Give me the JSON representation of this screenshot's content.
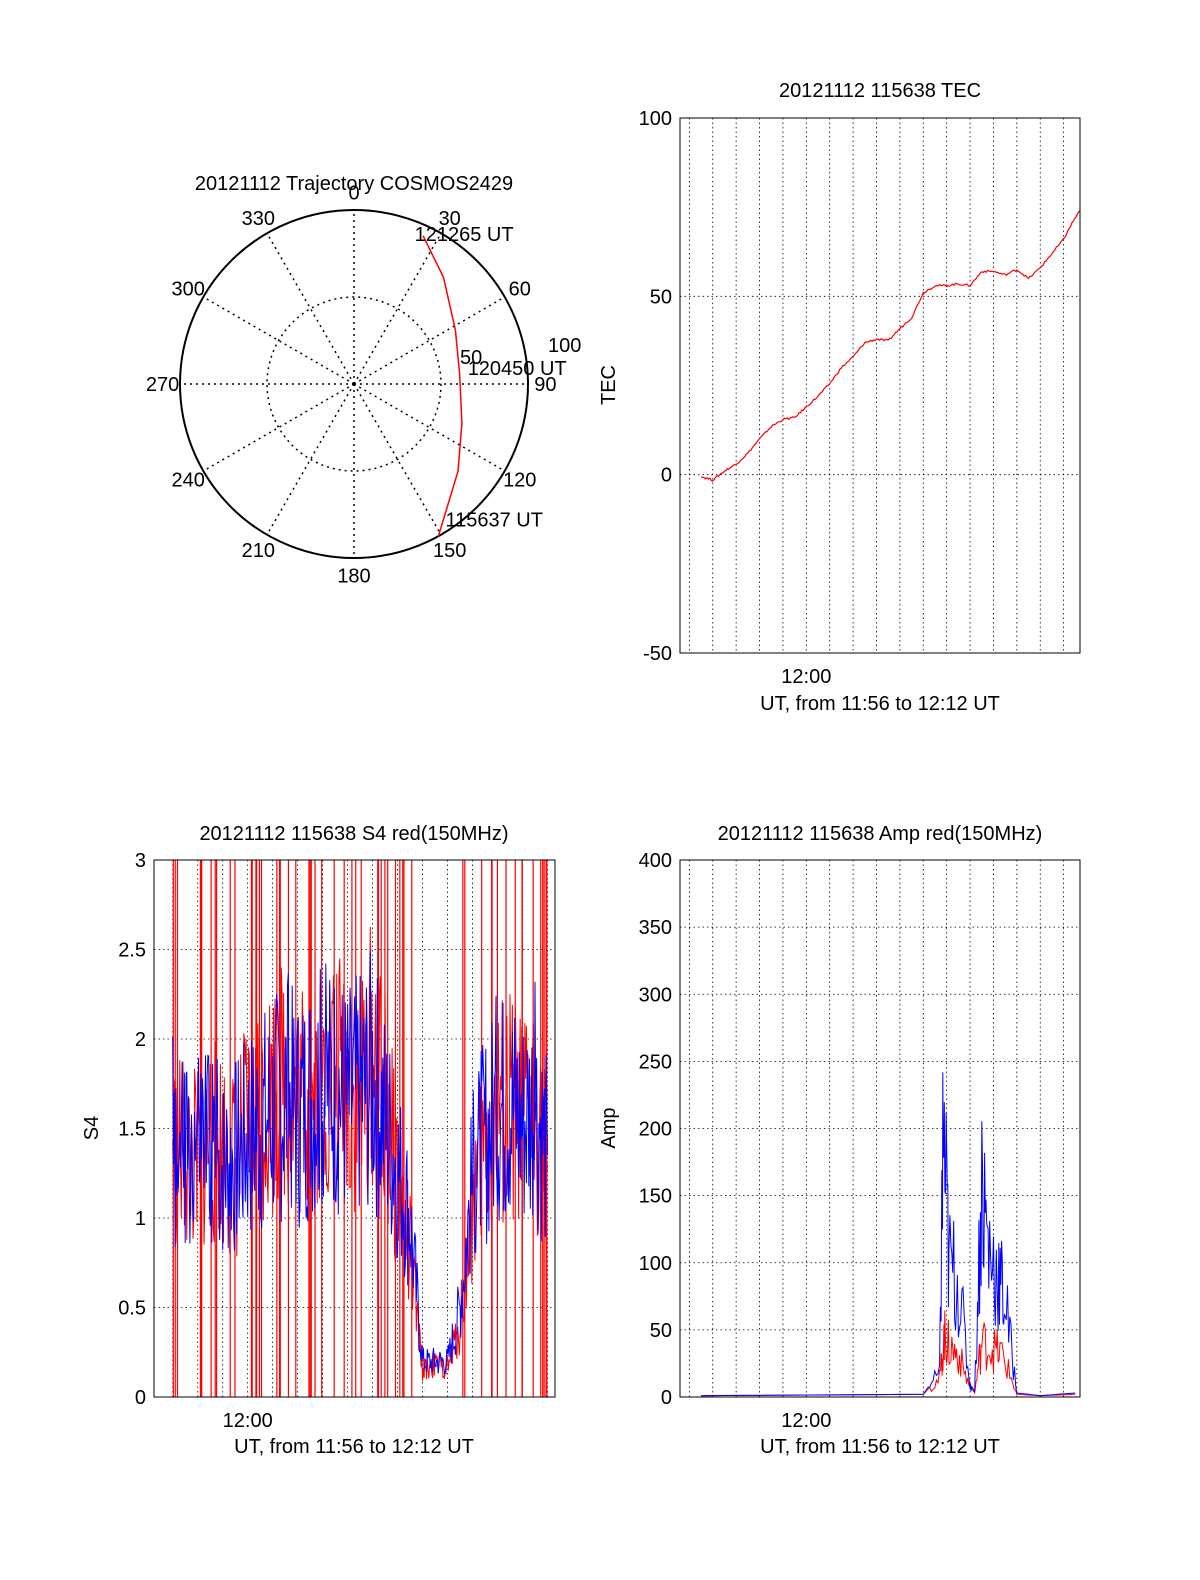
{
  "chart_data": [
    {
      "type": "polar-trajectory",
      "title": "20121112 Trajectory COSMOS2429",
      "angle_labels": [
        "0",
        "30",
        "60",
        "90",
        "120",
        "150",
        "180",
        "210",
        "240",
        "270",
        "300",
        "330"
      ],
      "radial_labels": [
        "50",
        "100"
      ],
      "radial_max": 100,
      "track": {
        "color": "#ff0000",
        "points": [
          {
            "az": 151,
            "r": 100
          },
          {
            "az": 130,
            "r": 78
          },
          {
            "az": 110,
            "r": 66
          },
          {
            "az": 85,
            "r": 61
          },
          {
            "az": 62,
            "r": 66
          },
          {
            "az": 40,
            "r": 80
          },
          {
            "az": 25,
            "r": 94
          }
        ]
      },
      "annotations": [
        {
          "text": "121265 UT",
          "az": 22,
          "r": 93
        },
        {
          "text": "120450 UT",
          "az": 82,
          "r": 66
        },
        {
          "text": "115637 UT",
          "az": 146,
          "r": 94
        }
      ]
    },
    {
      "type": "line",
      "title": "20121112 115638 TEC",
      "xlabel": "UT, from 11:56 to 12:12 UT",
      "ylabel": "TEC",
      "xlim": [
        -1.4,
        15.7
      ],
      "ylim": [
        -50,
        100
      ],
      "yticks": [
        -50,
        0,
        50,
        100
      ],
      "xticks": [
        {
          "x": 4,
          "label": "12:00"
        }
      ],
      "x_minor_step": 1,
      "series": [
        {
          "name": "TEC",
          "color": "#ff0000",
          "x": [
            -0.5,
            0,
            0.5,
            1,
            1.5,
            2,
            2.5,
            3,
            3.5,
            4,
            4.5,
            5,
            5.5,
            6,
            6.5,
            7,
            7.5,
            8,
            8.5,
            9,
            9.5,
            10,
            10.5,
            11,
            11.5,
            12,
            12.5,
            13,
            13.5,
            14,
            14.5,
            15,
            15.4,
            15.7
          ],
          "values": [
            -0.5,
            -1.5,
            1,
            3,
            6,
            10,
            13.5,
            15.5,
            16,
            19,
            22,
            25.5,
            30,
            33,
            37,
            38,
            37.5,
            41,
            44,
            51,
            53,
            53,
            53.5,
            53,
            57,
            57,
            56,
            57.5,
            55,
            58,
            62,
            66,
            71,
            74
          ]
        }
      ]
    },
    {
      "type": "line",
      "title": "20121112 115638 S4 red(150MHz)",
      "xlabel": "UT, from 11:56 to 12:12 UT",
      "ylabel": "S4",
      "xlim": [
        -0.75,
        15.3
      ],
      "ylim": [
        0,
        3
      ],
      "yticks": [
        0,
        0.5,
        1,
        1.5,
        2,
        2.5,
        3
      ],
      "xticks": [
        {
          "x": 3,
          "label": "12:00"
        }
      ],
      "x_minor_step": 1,
      "series": [
        {
          "name": "red",
          "color": "#ff0000",
          "x": [
            0,
            0.5,
            1,
            1.5,
            2,
            2.5,
            3,
            3.5,
            4,
            4.5,
            5,
            5.5,
            6,
            6.5,
            7,
            7.5,
            8,
            8.5,
            9,
            9.5,
            10,
            10.5,
            11,
            11.5,
            12,
            12.5,
            13,
            13.5,
            14,
            14.5,
            15
          ],
          "values": [
            1.4,
            1.35,
            1.3,
            1.45,
            1.4,
            1.3,
            1.5,
            1.6,
            1.7,
            1.75,
            1.65,
            1.7,
            1.75,
            1.8,
            1.7,
            1.65,
            1.9,
            1.6,
            1.2,
            0.8,
            0.15,
            0.18,
            0.16,
            0.4,
            1.1,
            1.4,
            1.55,
            1.6,
            1.5,
            1.6,
            1.3
          ]
        },
        {
          "name": "blue",
          "color": "#0000ff",
          "x": [
            0,
            0.5,
            1,
            1.5,
            2,
            2.5,
            3,
            3.5,
            4,
            4.5,
            5,
            5.5,
            6,
            6.5,
            7,
            7.5,
            8,
            8.5,
            9,
            9.5,
            10,
            10.5,
            11,
            11.5,
            12,
            12.5,
            13,
            13.5,
            14,
            14.5,
            15
          ],
          "values": [
            1.45,
            1.3,
            1.35,
            1.4,
            1.3,
            1.35,
            1.45,
            1.55,
            1.6,
            1.7,
            1.6,
            1.7,
            1.7,
            1.75,
            1.65,
            1.7,
            1.8,
            1.55,
            1.3,
            1.0,
            0.2,
            0.2,
            0.2,
            0.5,
            1.2,
            1.45,
            1.6,
            1.65,
            1.55,
            1.65,
            1.35
          ]
        }
      ]
    },
    {
      "type": "line",
      "title": "20121112 115638 Amp red(150MHz)",
      "xlabel": "UT, from 11:56 to 12:12 UT",
      "ylabel": "Amp",
      "xlim": [
        -1.4,
        15.7
      ],
      "ylim": [
        0,
        400
      ],
      "yticks": [
        0,
        50,
        100,
        150,
        200,
        250,
        300,
        350,
        400
      ],
      "xticks": [
        {
          "x": 4,
          "label": "12:00"
        }
      ],
      "x_minor_step": 1,
      "series": [
        {
          "name": "red",
          "color": "#ff0000",
          "x": [
            -0.5,
            9,
            9.7,
            9.9,
            10.1,
            10.5,
            11,
            11.2,
            11.5,
            12,
            12.4,
            13,
            14,
            15.5
          ],
          "values": [
            1,
            2,
            15,
            50,
            42,
            35,
            8,
            3,
            45,
            40,
            35,
            2,
            1,
            2
          ]
        },
        {
          "name": "blue",
          "color": "#0000ff",
          "x": [
            -0.5,
            9,
            9.7,
            9.85,
            10.1,
            10.5,
            11,
            11.2,
            11.5,
            11.8,
            12.2,
            12.5,
            13,
            14,
            15.5
          ],
          "values": [
            1,
            2,
            20,
            220,
            110,
            95,
            10,
            4,
            180,
            120,
            100,
            80,
            3,
            1,
            3
          ]
        }
      ]
    }
  ]
}
